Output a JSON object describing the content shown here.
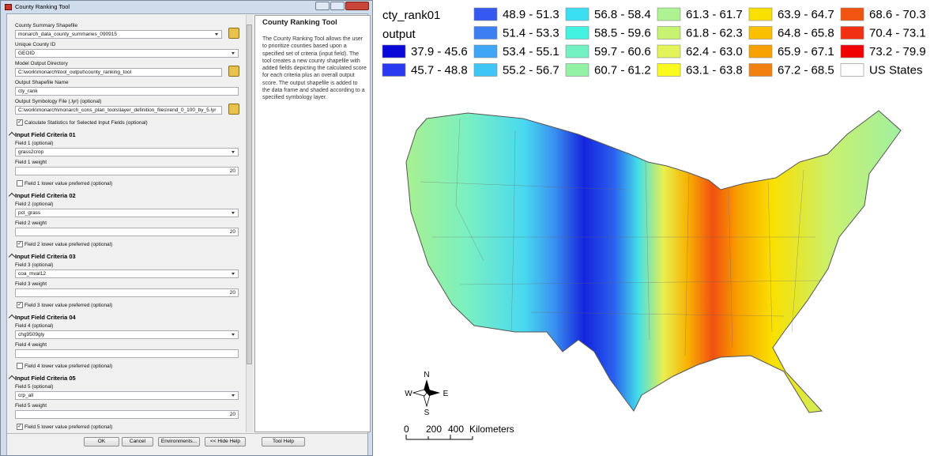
{
  "window": {
    "title": "County Ranking Tool"
  },
  "form": {
    "fields": [
      {
        "kind": "label",
        "text": "County Summary Shapefile"
      },
      {
        "kind": "combo",
        "value": "monarch_data_county_summaries_090915",
        "browse": true
      },
      {
        "kind": "label",
        "text": "Unique County ID"
      },
      {
        "kind": "combo",
        "value": "GEOID"
      },
      {
        "kind": "label",
        "text": "Model Output Directory"
      },
      {
        "kind": "text",
        "value": "C:\\work\\monarch\\tool_output\\county_ranking_tool",
        "browse": true
      },
      {
        "kind": "label",
        "text": "Output Shapefile Name"
      },
      {
        "kind": "text",
        "value": "cty_rank"
      },
      {
        "kind": "label",
        "text": "Output Symbology File (.lyr) (optional)"
      },
      {
        "kind": "text",
        "value": "C:\\work\\monarch\\monarch_cons_plan_tools\\layer_definition_files\\rend_0_100_by_5.lyr",
        "browse": true
      },
      {
        "kind": "check",
        "text": "Calculate Statistics for Selected Input Fields (optional)",
        "checked": true
      },
      {
        "kind": "section",
        "text": "Input Field Criteria 01"
      },
      {
        "kind": "label",
        "text": "Field 1 (optional)"
      },
      {
        "kind": "combo",
        "value": "grass2crop"
      },
      {
        "kind": "label",
        "text": "Field 1 weight"
      },
      {
        "kind": "number",
        "value": 20
      },
      {
        "kind": "check",
        "text": "Field 1 lower value preferred (optional)",
        "checked": false
      },
      {
        "kind": "section",
        "text": "Input Field Criteria 02"
      },
      {
        "kind": "label",
        "text": "Field 2 (optional)"
      },
      {
        "kind": "combo",
        "value": "pct_grass"
      },
      {
        "kind": "label",
        "text": "Field 2 weight"
      },
      {
        "kind": "number",
        "value": 20
      },
      {
        "kind": "check",
        "text": "Field 2 lower value preferred (optional)",
        "checked": true
      },
      {
        "kind": "section",
        "text": "Input Field Criteria 03"
      },
      {
        "kind": "label",
        "text": "Field 3 (optional)"
      },
      {
        "kind": "combo",
        "value": "coa_mval12"
      },
      {
        "kind": "label",
        "text": "Field 3 weight"
      },
      {
        "kind": "number",
        "value": 20
      },
      {
        "kind": "check",
        "text": "Field 3 lower value preferred (optional)",
        "checked": true
      },
      {
        "kind": "section",
        "text": "Input Field Criteria 04"
      },
      {
        "kind": "label",
        "text": "Field 4 (optional)"
      },
      {
        "kind": "combo",
        "value": "chg9509gly"
      },
      {
        "kind": "label",
        "text": "Field 4 weight"
      },
      {
        "kind": "number",
        "value": ""
      },
      {
        "kind": "check",
        "text": "Field 4 lower value preferred (optional)",
        "checked": false
      },
      {
        "kind": "section",
        "text": "Input Field Criteria 05"
      },
      {
        "kind": "label",
        "text": "Field 5 (optional)"
      },
      {
        "kind": "combo",
        "value": "crp_all"
      },
      {
        "kind": "label",
        "text": "Field 5 weight"
      },
      {
        "kind": "number",
        "value": 20
      },
      {
        "kind": "check",
        "text": "Field 5 lower value preferred (optional)",
        "checked": true
      }
    ]
  },
  "help": {
    "title": "County Ranking Tool",
    "text": "The County Ranking Tool allows the user to prioritize counties based upon a specified set of criteria (input field). The tool creates a new county shapefile with added fields depicting the calculated score for each criteria plus an overall output score. The output shapefile is added to the data frame and shaded according to a specified symbology layer."
  },
  "buttons": [
    "OK",
    "Cancel",
    "Environments...",
    "<< Hide Help",
    "Tool Help"
  ],
  "legend": {
    "layer": "cty_rank01",
    "field": "output",
    "classes": [
      {
        "label": "37.9 - 45.6",
        "color": "#0808d8"
      },
      {
        "label": "45.7 - 48.8",
        "color": "#2a3af0"
      },
      {
        "label": "48.9 - 51.3",
        "color": "#3558f0"
      },
      {
        "label": "51.4 - 53.3",
        "color": "#3d7ef2"
      },
      {
        "label": "53.4 - 55.1",
        "color": "#3ea6f5"
      },
      {
        "label": "55.2 - 56.7",
        "color": "#40c6f6"
      },
      {
        "label": "56.8 - 58.4",
        "color": "#3cdff2"
      },
      {
        "label": "58.5 - 59.6",
        "color": "#44f2e2"
      },
      {
        "label": "59.7 - 60.6",
        "color": "#72f2c2"
      },
      {
        "label": "60.7 - 61.2",
        "color": "#94f2a4"
      },
      {
        "label": "61.3 - 61.7",
        "color": "#aef292"
      },
      {
        "label": "61.8 - 62.3",
        "color": "#c8f272"
      },
      {
        "label": "62.4 - 63.0",
        "color": "#e2f45a"
      },
      {
        "label": "63.1 - 63.8",
        "color": "#fafa1e"
      },
      {
        "label": "63.9 - 64.7",
        "color": "#fae000"
      },
      {
        "label": "64.8 - 65.8",
        "color": "#fac000"
      },
      {
        "label": "65.9 - 67.1",
        "color": "#f8a000"
      },
      {
        "label": "67.2 - 68.5",
        "color": "#f28010"
      },
      {
        "label": "68.6 - 70.3",
        "color": "#f05410"
      },
      {
        "label": "70.4 - 73.1",
        "color": "#f03010"
      },
      {
        "label": "73.2 - 79.9",
        "color": "#f00000"
      },
      {
        "label": "US States",
        "color": "#ffffff"
      }
    ]
  },
  "compass": {
    "n": "N",
    "s": "S",
    "e": "E",
    "w": "W"
  },
  "scale": {
    "ticks": [
      "0",
      "200",
      "400"
    ],
    "unit": "Kilometers"
  }
}
